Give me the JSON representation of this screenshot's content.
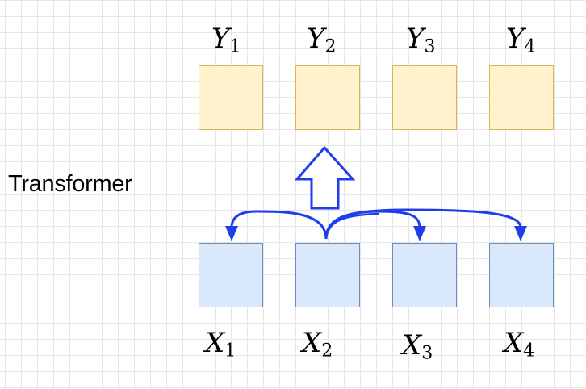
{
  "diagram": {
    "side_label": "Transformer",
    "colors": {
      "output_fill": "#fff2cc",
      "output_stroke": "#d6b656",
      "input_fill": "#dae8fc",
      "input_stroke": "#6c8ebf",
      "arrow": "#1f3dea"
    },
    "outputs": [
      {
        "var": "Y",
        "sub": "1"
      },
      {
        "var": "Y",
        "sub": "2"
      },
      {
        "var": "Y",
        "sub": "3"
      },
      {
        "var": "Y",
        "sub": "4"
      }
    ],
    "inputs": [
      {
        "var": "X",
        "sub": "1"
      },
      {
        "var": "X",
        "sub": "2"
      },
      {
        "var": "X",
        "sub": "3"
      },
      {
        "var": "X",
        "sub": "4"
      }
    ]
  }
}
